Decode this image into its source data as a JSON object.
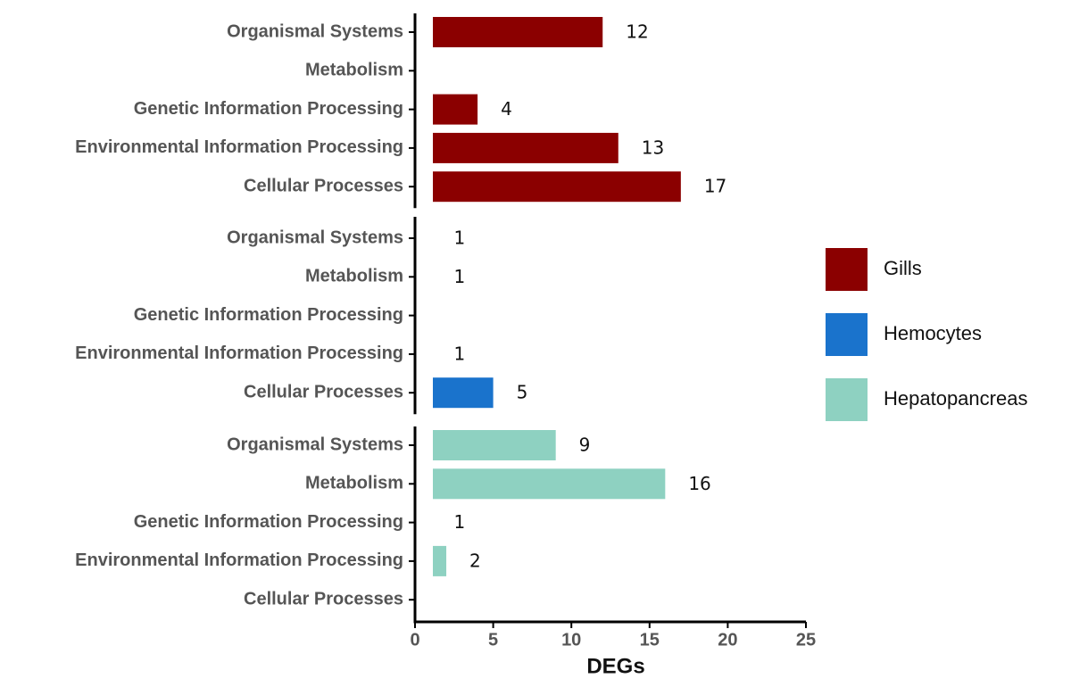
{
  "chart_data": {
    "type": "bar",
    "orientation": "horizontal",
    "xlabel": "DEGs",
    "categories": [
      "Organismal Systems",
      "Metabolism",
      "Genetic Information Processing",
      "Environmental Information Processing",
      "Cellular Processes"
    ],
    "series": [
      {
        "name": "Gills",
        "color": "#8b0000",
        "values": [
          12,
          null,
          4,
          13,
          17
        ]
      },
      {
        "name": "Hemocytes",
        "color": "#1a73cc",
        "values": [
          1,
          1,
          null,
          1,
          5
        ]
      },
      {
        "name": "Hepatopancreas",
        "color": "#8ed1c1",
        "values": [
          9,
          16,
          1,
          2,
          null
        ]
      }
    ],
    "xlim": [
      0,
      25
    ],
    "xticks": [
      0,
      5,
      10,
      15,
      20,
      25
    ],
    "legend": "right"
  }
}
